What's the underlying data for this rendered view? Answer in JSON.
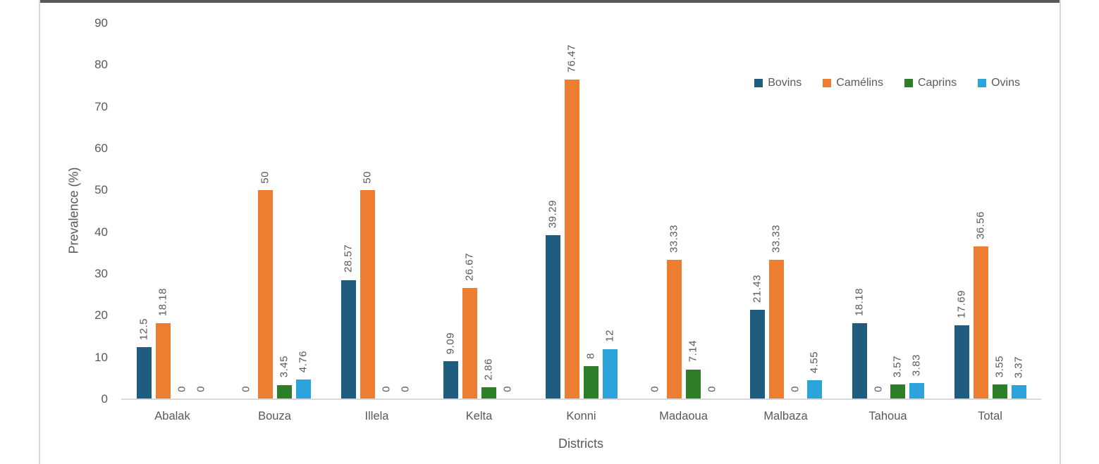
{
  "chart_data": {
    "type": "bar",
    "title": "",
    "xlabel": "Districts",
    "ylabel": "Prevalence (%)",
    "ylim": [
      0,
      90
    ],
    "ytick_step": 10,
    "grid": false,
    "data_labels": "rotated-90-above-bars",
    "legend_position": "top-right",
    "categories": [
      "Abalak",
      "Bouza",
      "Illela",
      "Kelta",
      "Konni",
      "Madaoua",
      "Malbaza",
      "Tahoua",
      "Total"
    ],
    "series": [
      {
        "name": "Bovins",
        "color": "#1f5c7e",
        "values": [
          12.5,
          0,
          28.57,
          9.09,
          39.29,
          0,
          21.43,
          18.18,
          17.69
        ]
      },
      {
        "name": "Camélins",
        "color": "#ed7d31",
        "values": [
          18.18,
          50,
          50,
          26.67,
          76.47,
          33.33,
          33.33,
          0,
          36.56
        ]
      },
      {
        "name": "Caprins",
        "color": "#2e7d28",
        "values": [
          0,
          3.45,
          0,
          2.86,
          8,
          7.14,
          0,
          3.57,
          3.55
        ]
      },
      {
        "name": "Ovins",
        "color": "#2da3dc",
        "values": [
          0,
          4.76,
          0,
          0,
          12,
          0,
          4.55,
          3.83,
          3.37
        ]
      }
    ]
  }
}
